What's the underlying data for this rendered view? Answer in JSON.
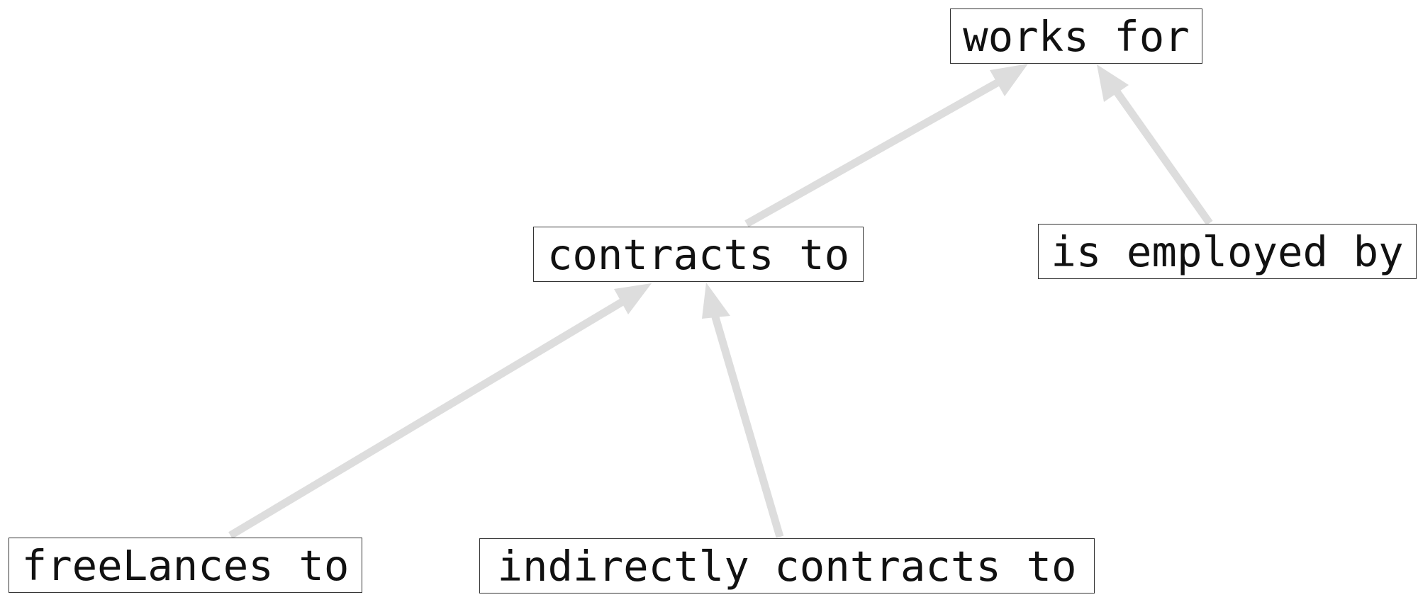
{
  "diagram": {
    "edge_color": "#dddddd",
    "nodes": {
      "works_for": "works for",
      "contracts_to": "contracts to",
      "is_employed_by": "is employed by",
      "freelances_to": "freeLances to",
      "indirectly_contracts_to": "indirectly contracts to"
    },
    "edges": [
      {
        "from": "contracts_to",
        "to": "works_for"
      },
      {
        "from": "is_employed_by",
        "to": "works_for"
      },
      {
        "from": "freelances_to",
        "to": "contracts_to"
      },
      {
        "from": "indirectly_contracts_to",
        "to": "contracts_to"
      }
    ]
  }
}
